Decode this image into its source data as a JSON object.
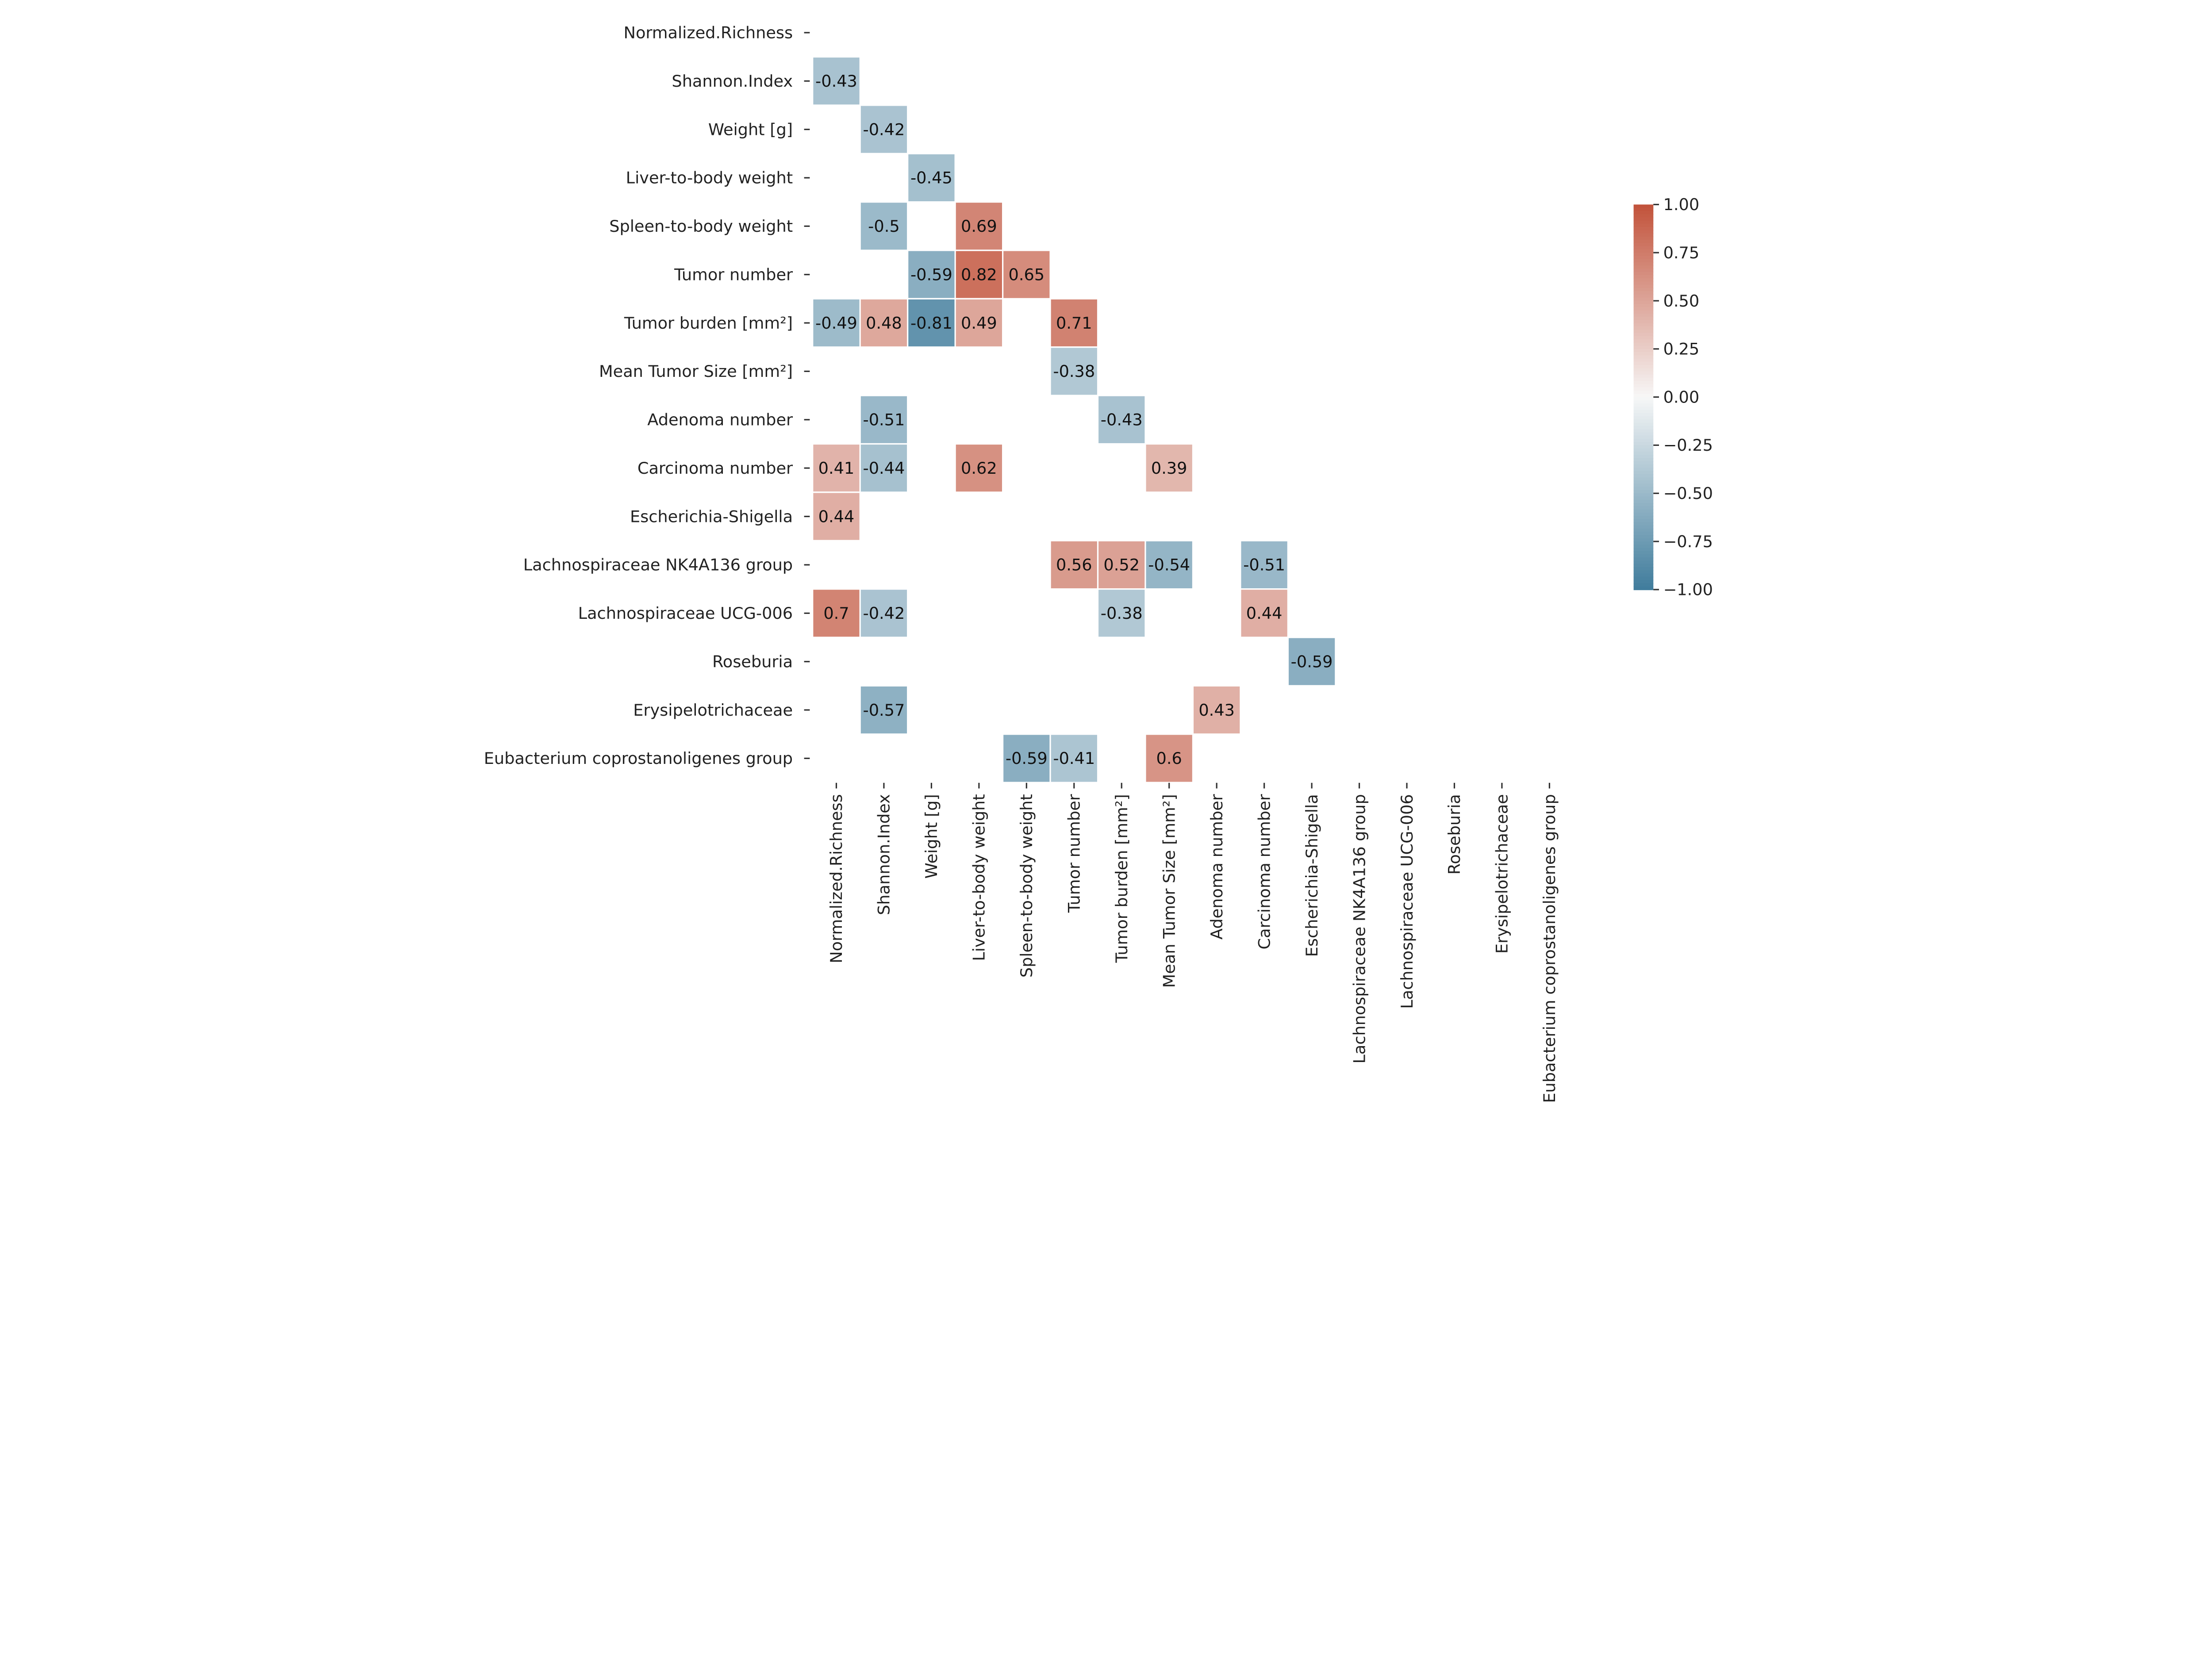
{
  "chart_data": {
    "type": "heatmap",
    "title": "",
    "variables": [
      "Normalized.Richness",
      "Shannon.Index",
      "Weight [g]",
      "Liver-to-body weight",
      "Spleen-to-body weight",
      "Tumor number",
      "Tumor burden [mm²]",
      "Mean Tumor Size [mm²]",
      "Adenoma number",
      "Carcinoma number",
      "Escherichia-Shigella",
      "Lachnospiraceae NK4A136 group",
      "Lachnospiraceae UCG-006",
      "Roseburia",
      "Erysipelotrichaceae",
      "Eubacterium coprostanoligenes group"
    ],
    "cells": [
      {
        "row": 1,
        "col": 0,
        "value": -0.43
      },
      {
        "row": 2,
        "col": 1,
        "value": -0.42
      },
      {
        "row": 3,
        "col": 2,
        "value": -0.45
      },
      {
        "row": 4,
        "col": 1,
        "value": -0.5
      },
      {
        "row": 4,
        "col": 3,
        "value": 0.69
      },
      {
        "row": 5,
        "col": 2,
        "value": -0.59
      },
      {
        "row": 5,
        "col": 3,
        "value": 0.82
      },
      {
        "row": 5,
        "col": 4,
        "value": 0.65
      },
      {
        "row": 6,
        "col": 0,
        "value": -0.49
      },
      {
        "row": 6,
        "col": 1,
        "value": 0.48
      },
      {
        "row": 6,
        "col": 2,
        "value": -0.81
      },
      {
        "row": 6,
        "col": 3,
        "value": 0.49
      },
      {
        "row": 6,
        "col": 5,
        "value": 0.71
      },
      {
        "row": 7,
        "col": 5,
        "value": -0.38
      },
      {
        "row": 8,
        "col": 1,
        "value": -0.51
      },
      {
        "row": 8,
        "col": 6,
        "value": -0.43
      },
      {
        "row": 9,
        "col": 0,
        "value": 0.41
      },
      {
        "row": 9,
        "col": 1,
        "value": -0.44
      },
      {
        "row": 9,
        "col": 3,
        "value": 0.62
      },
      {
        "row": 9,
        "col": 7,
        "value": 0.39
      },
      {
        "row": 10,
        "col": 0,
        "value": 0.44
      },
      {
        "row": 11,
        "col": 5,
        "value": 0.56
      },
      {
        "row": 11,
        "col": 6,
        "value": 0.52
      },
      {
        "row": 11,
        "col": 7,
        "value": -0.54
      },
      {
        "row": 11,
        "col": 9,
        "value": -0.51
      },
      {
        "row": 12,
        "col": 0,
        "value": 0.7
      },
      {
        "row": 12,
        "col": 1,
        "value": -0.42
      },
      {
        "row": 12,
        "col": 6,
        "value": -0.38
      },
      {
        "row": 12,
        "col": 9,
        "value": 0.44
      },
      {
        "row": 13,
        "col": 10,
        "value": -0.59
      },
      {
        "row": 14,
        "col": 1,
        "value": -0.57
      },
      {
        "row": 14,
        "col": 8,
        "value": 0.43
      },
      {
        "row": 15,
        "col": 4,
        "value": -0.59
      },
      {
        "row": 15,
        "col": 5,
        "value": -0.41
      },
      {
        "row": 15,
        "col": 7,
        "value": 0.6
      }
    ],
    "colorbar": {
      "range": [
        -1,
        1
      ],
      "ticks": [
        "1.00",
        "0.75",
        "0.50",
        "0.25",
        "0.00",
        "−0.25",
        "−0.50",
        "−0.75",
        "−1.00"
      ],
      "tick_values": [
        1,
        0.75,
        0.5,
        0.25,
        0,
        -0.25,
        -0.5,
        -0.75,
        -1
      ],
      "colors": {
        "negative": "#3f7c9c",
        "center": "#f7f7f7",
        "positive": "#c2523a"
      }
    }
  }
}
